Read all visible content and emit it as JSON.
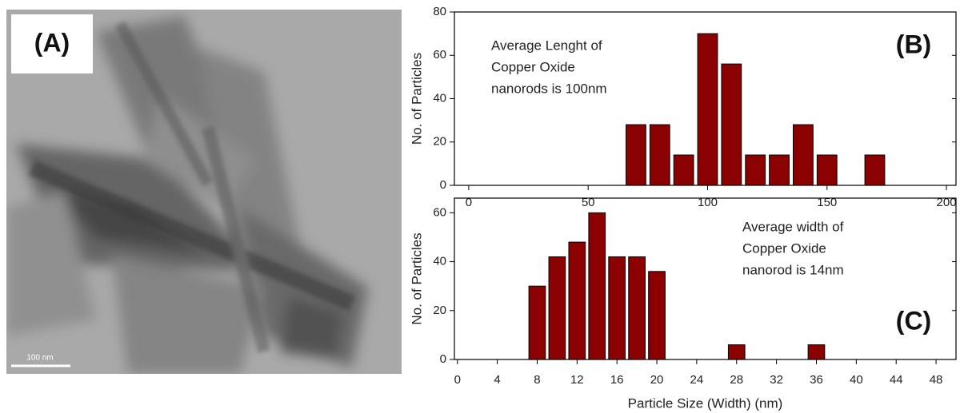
{
  "image_panel": {
    "label": "(A)",
    "scale_bar": "100 nm"
  },
  "chart_data": [
    {
      "type": "bar",
      "panel_label": "(B)",
      "ylabel": "No. of Particles",
      "annotation": [
        "Average Lenght of",
        "Copper Oxide",
        "nanorods is 100nm"
      ],
      "x": [
        70,
        80,
        90,
        100,
        110,
        120,
        130,
        140,
        150,
        170
      ],
      "values": [
        28,
        28,
        14,
        70,
        56,
        14,
        14,
        28,
        14,
        14
      ],
      "color": "#8b0000",
      "xlim": [
        -6,
        204
      ],
      "xticks": [
        0,
        50,
        100,
        150,
        200
      ],
      "ylim": [
        0,
        80
      ],
      "yticks": [
        0,
        20,
        40,
        60,
        80
      ]
    },
    {
      "type": "bar",
      "panel_label": "(C)",
      "ylabel": "No. of Particles",
      "xlabel": "Particle Size (Width) (nm)",
      "annotation": [
        "Average width of",
        "Copper Oxide",
        "nanorod is 14nm"
      ],
      "x": [
        8,
        10,
        12,
        14,
        16,
        18,
        20,
        28,
        36
      ],
      "values": [
        30,
        42,
        48,
        60,
        42,
        42,
        36,
        6,
        6
      ],
      "color": "#8b0000",
      "xlim": [
        -0.3,
        50
      ],
      "xticks": [
        0,
        4,
        8,
        12,
        16,
        20,
        24,
        28,
        32,
        36,
        40,
        44,
        48
      ],
      "ylim": [
        0,
        66
      ],
      "yticks": [
        0,
        20,
        40,
        60
      ]
    }
  ]
}
